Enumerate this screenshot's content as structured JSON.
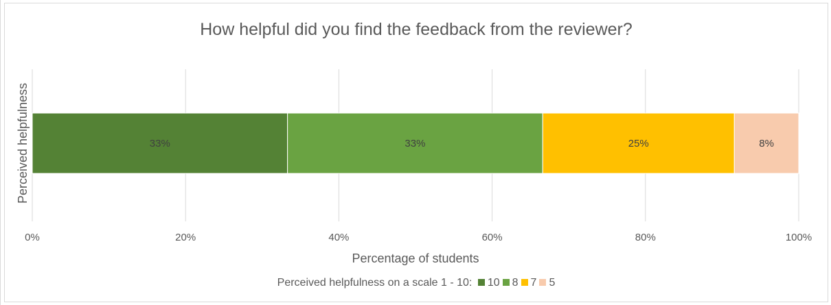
{
  "chart_data": {
    "type": "bar",
    "orientation": "horizontal",
    "stacking": "percent",
    "title": "How helpful did you find the feedback from the reviewer?",
    "xlabel": "Percentage of students",
    "ylabel": "Perceived helpfulness",
    "categories": [
      ""
    ],
    "xlim": [
      0,
      100
    ],
    "x_ticks": [
      "0%",
      "20%",
      "40%",
      "60%",
      "80%",
      "100%"
    ],
    "grid": "vertical",
    "legend": {
      "title": "Perceived helpfulness on a scale 1 - 10:",
      "position": "bottom"
    },
    "series": [
      {
        "name": "10",
        "values": [
          33.3
        ],
        "label": "33%",
        "color": "#548235"
      },
      {
        "name": "8",
        "values": [
          33.3
        ],
        "label": "33%",
        "color": "#6aa342"
      },
      {
        "name": "7",
        "values": [
          25.0
        ],
        "label": "25%",
        "color": "#ffc000"
      },
      {
        "name": "5",
        "values": [
          8.4
        ],
        "label": "8%",
        "color": "#f8cbad"
      }
    ]
  }
}
